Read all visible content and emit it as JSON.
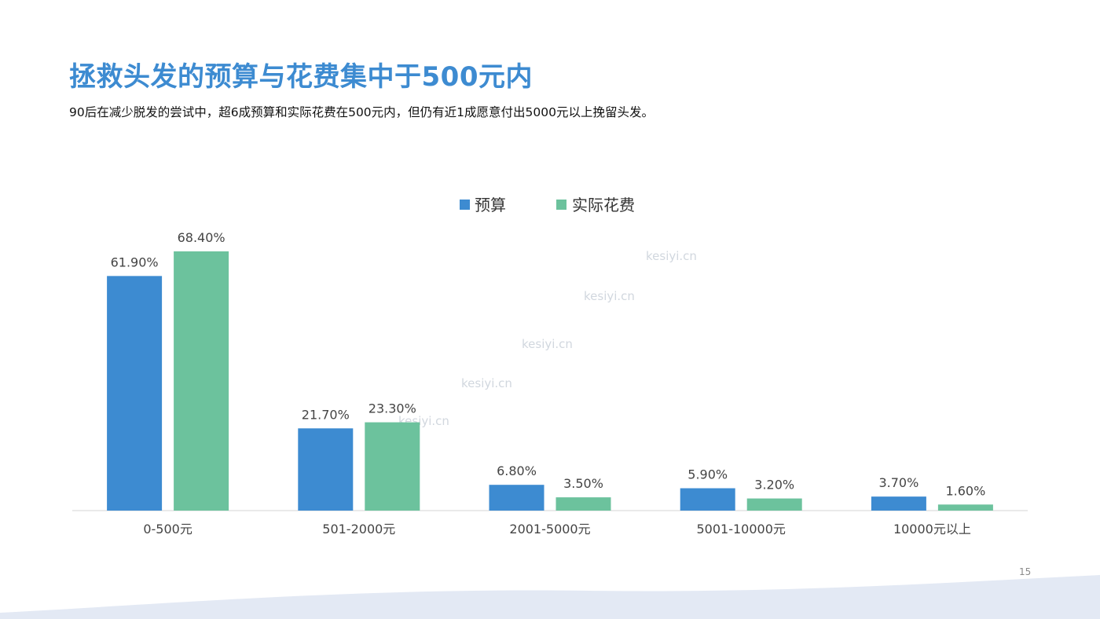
{
  "slide": {
    "title": "拯救头发的预算与花费集中于500元内",
    "subtitle": "90后在减少脱发的尝试中，超6成预算和实际花费在500元内，但仍有近1成愿意付出5000元以上挽留头发。",
    "page_number": "15",
    "watermark_text": "kesiyi.cn"
  },
  "colors": {
    "title": "#3d8bd1",
    "budget": "#3d8bd1",
    "actual": "#6cc29d",
    "wave": "#e3e9f4"
  },
  "chart_data": {
    "type": "bar",
    "categories": [
      "0-500元",
      "501-2000元",
      "2001-5000元",
      "5001-10000元",
      "10000元以上"
    ],
    "series": [
      {
        "name": "预算",
        "values": [
          61.9,
          21.7,
          6.8,
          5.9,
          3.7
        ],
        "labels": [
          "61.90%",
          "21.70%",
          "6.80%",
          "5.90%",
          "3.70%"
        ]
      },
      {
        "name": "实际花费",
        "values": [
          68.4,
          23.3,
          3.5,
          3.2,
          1.6
        ],
        "labels": [
          "68.40%",
          "23.30%",
          "3.50%",
          "3.20%",
          "1.60%"
        ]
      }
    ],
    "ylim": [
      0,
      68.4
    ],
    "legend": "top-center",
    "grid": false,
    "xlabel": "",
    "ylabel": ""
  }
}
